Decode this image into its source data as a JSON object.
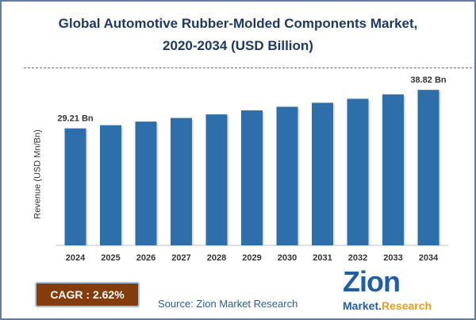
{
  "chart_data": {
    "type": "bar",
    "title": "Global Automotive Rubber-Molded Components Market,",
    "subtitle": "2020-2034 (USD Billion)",
    "ylabel": "Revenue (USD Mn/Bn)",
    "xlabel": "",
    "categories": [
      "2024",
      "2025",
      "2026",
      "2027",
      "2028",
      "2029",
      "2030",
      "2031",
      "2032",
      "2033",
      "2034"
    ],
    "values": [
      29.21,
      30.0,
      30.9,
      31.8,
      32.7,
      33.7,
      34.6,
      35.6,
      36.6,
      37.7,
      38.82
    ],
    "data_labels": {
      "first": "29.21 Bn",
      "last": "38.82 Bn"
    },
    "ylim": [
      0,
      45
    ],
    "grid": false,
    "bar_color": "#2e6fab"
  },
  "cagr": "CAGR : 2.62%",
  "source": "Source: Zion Market Research",
  "logo": {
    "text": "Zion",
    "sub1": "Market.",
    "sub2": "Research"
  },
  "colors": {
    "title": "#1f3864",
    "cagr_bg": "#843c0c",
    "source": "#2e5c8a"
  }
}
